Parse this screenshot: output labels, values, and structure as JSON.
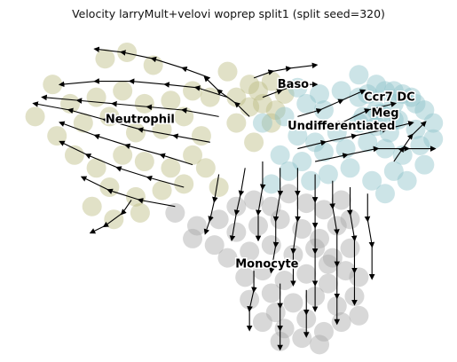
{
  "chart_data": {
    "type": "scatter",
    "title": "Velocity larryMult+velovi woprep split1 (split seed=320)",
    "grid": false,
    "axes_visible": false,
    "legend": "on data",
    "xlim": [
      0,
      100
    ],
    "ylim": [
      0,
      100
    ],
    "colors": {
      "Neutrophil": "#bcbd82",
      "Baso": "#bcbd82",
      "Undifferentiated": "#8fc4ca",
      "Ccr7 DC": "#8fc4ca",
      "Meg": "#8fc4ca",
      "Monocyte": "#a9a9a9",
      "streamline": "#000000"
    },
    "clusters": [
      {
        "name": "Neutrophil",
        "label_pos": [
          30,
          70
        ],
        "color": "#bcbd82",
        "points": [
          [
            22,
            90
          ],
          [
            27,
            92
          ],
          [
            33,
            88
          ],
          [
            10,
            82
          ],
          [
            14,
            76
          ],
          [
            20,
            78
          ],
          [
            26,
            80
          ],
          [
            31,
            76
          ],
          [
            37,
            77
          ],
          [
            42,
            80
          ],
          [
            46,
            78
          ],
          [
            6,
            72
          ],
          [
            11,
            66
          ],
          [
            17,
            70
          ],
          [
            23,
            72
          ],
          [
            29,
            67
          ],
          [
            35,
            68
          ],
          [
            40,
            72
          ],
          [
            44,
            66
          ],
          [
            15,
            60
          ],
          [
            20,
            56
          ],
          [
            26,
            60
          ],
          [
            31,
            58
          ],
          [
            37,
            56
          ],
          [
            42,
            60
          ],
          [
            23,
            50
          ],
          [
            29,
            47
          ],
          [
            35,
            49
          ],
          [
            40,
            51
          ],
          [
            45,
            56
          ],
          [
            48,
            50
          ],
          [
            19,
            44
          ],
          [
            24,
            40
          ],
          [
            30,
            42
          ],
          [
            50,
            86
          ],
          [
            55,
            82
          ],
          [
            58,
            76
          ],
          [
            60,
            70
          ],
          [
            52,
            70
          ],
          [
            56,
            64
          ]
        ]
      },
      {
        "name": "Baso",
        "label_pos": [
          65,
          81
        ],
        "color": "#bcbd82",
        "points": [
          [
            52,
            78
          ],
          [
            55,
            75
          ],
          [
            57,
            80
          ],
          [
            60,
            83
          ],
          [
            63,
            79
          ],
          [
            61,
            74
          ]
        ]
      },
      {
        "name": "Undifferentiated",
        "label_pos": [
          76,
          68
        ],
        "color": "#8fc4ca",
        "points": [
          [
            58,
            70
          ],
          [
            63,
            72
          ],
          [
            68,
            76
          ],
          [
            72,
            74
          ],
          [
            76,
            80
          ],
          [
            80,
            78
          ],
          [
            84,
            82
          ],
          [
            88,
            80
          ],
          [
            92,
            78
          ],
          [
            95,
            74
          ],
          [
            97,
            70
          ],
          [
            93,
            68
          ],
          [
            88,
            71
          ],
          [
            84,
            74
          ],
          [
            80,
            70
          ],
          [
            75,
            67
          ],
          [
            70,
            64
          ],
          [
            66,
            66
          ],
          [
            62,
            60
          ],
          [
            67,
            58
          ],
          [
            72,
            61
          ],
          [
            77,
            62
          ],
          [
            82,
            64
          ],
          [
            86,
            62
          ],
          [
            90,
            60
          ],
          [
            94,
            63
          ],
          [
            97,
            65
          ],
          [
            88,
            55
          ],
          [
            83,
            52
          ],
          [
            78,
            56
          ],
          [
            73,
            54
          ],
          [
            69,
            52
          ],
          [
            64,
            55
          ],
          [
            60,
            51
          ],
          [
            86,
            48
          ],
          [
            91,
            52
          ],
          [
            95,
            57
          ],
          [
            71,
            79
          ],
          [
            66,
            81
          ],
          [
            80,
            85
          ]
        ]
      },
      {
        "name": "Ccr7 DC",
        "label_pos": [
          87,
          77
        ],
        "color": "#8fc4ca",
        "points": [
          [
            82,
            79
          ],
          [
            86,
            80
          ],
          [
            90,
            79
          ],
          [
            93,
            76
          ],
          [
            88,
            76
          ]
        ]
      },
      {
        "name": "Meg",
        "label_pos": [
          86,
          72
        ],
        "color": "#8fc4ca",
        "points": [
          [
            81,
            72
          ],
          [
            85,
            73
          ],
          [
            89,
            71
          ],
          [
            84,
            69
          ],
          [
            87,
            67
          ]
        ]
      },
      {
        "name": "Monocyte",
        "label_pos": [
          59,
          25
        ],
        "color": "#a9a9a9",
        "points": [
          [
            38,
            42
          ],
          [
            43,
            38
          ],
          [
            48,
            40
          ],
          [
            52,
            44
          ],
          [
            56,
            46
          ],
          [
            60,
            44
          ],
          [
            64,
            48
          ],
          [
            68,
            45
          ],
          [
            72,
            43
          ],
          [
            76,
            46
          ],
          [
            42,
            34
          ],
          [
            47,
            32
          ],
          [
            52,
            36
          ],
          [
            57,
            38
          ],
          [
            62,
            40
          ],
          [
            67,
            37
          ],
          [
            71,
            34
          ],
          [
            75,
            38
          ],
          [
            78,
            40
          ],
          [
            50,
            28
          ],
          [
            55,
            30
          ],
          [
            60,
            32
          ],
          [
            65,
            29
          ],
          [
            70,
            31
          ],
          [
            74,
            28
          ],
          [
            78,
            31
          ],
          [
            54,
            22
          ],
          [
            58,
            24
          ],
          [
            63,
            21
          ],
          [
            68,
            23
          ],
          [
            73,
            20
          ],
          [
            77,
            24
          ],
          [
            80,
            22
          ],
          [
            55,
            15
          ],
          [
            60,
            17
          ],
          [
            65,
            14
          ],
          [
            70,
            16
          ],
          [
            75,
            13
          ],
          [
            79,
            16
          ],
          [
            58,
            8
          ],
          [
            63,
            6
          ],
          [
            68,
            9
          ],
          [
            72,
            5
          ],
          [
            76,
            8
          ],
          [
            80,
            10
          ],
          [
            62,
            2
          ],
          [
            67,
            3
          ],
          [
            71,
            1
          ],
          [
            61,
            11
          ],
          [
            73,
            26
          ]
        ]
      }
    ],
    "streamlines": [
      {
        "points": [
          [
            46,
            84
          ],
          [
            40,
            87
          ],
          [
            33,
            90
          ],
          [
            26,
            92
          ],
          [
            20,
            93
          ]
        ]
      },
      {
        "points": [
          [
            50,
            78
          ],
          [
            43,
            81
          ],
          [
            36,
            82
          ],
          [
            28,
            83
          ],
          [
            20,
            83
          ],
          [
            12,
            82
          ]
        ]
      },
      {
        "points": [
          [
            48,
            72
          ],
          [
            40,
            74
          ],
          [
            32,
            75
          ],
          [
            24,
            76
          ],
          [
            16,
            77
          ],
          [
            8,
            78
          ]
        ]
      },
      {
        "points": [
          [
            46,
            64
          ],
          [
            38,
            66
          ],
          [
            30,
            68
          ],
          [
            22,
            71
          ],
          [
            14,
            74
          ],
          [
            6,
            76
          ]
        ]
      },
      {
        "points": [
          [
            42,
            57
          ],
          [
            35,
            60
          ],
          [
            27,
            63
          ],
          [
            20,
            66
          ],
          [
            12,
            70
          ]
        ]
      },
      {
        "points": [
          [
            40,
            50
          ],
          [
            32,
            53
          ],
          [
            25,
            56
          ],
          [
            18,
            60
          ],
          [
            12,
            64
          ]
        ]
      },
      {
        "points": [
          [
            38,
            44
          ],
          [
            30,
            46
          ],
          [
            23,
            49
          ],
          [
            17,
            53
          ]
        ]
      },
      {
        "points": [
          [
            28,
            46
          ],
          [
            26,
            42
          ],
          [
            22,
            38
          ],
          [
            19,
            36
          ]
        ]
      },
      {
        "points": [
          [
            56,
            84
          ],
          [
            60,
            86
          ],
          [
            64,
            87
          ],
          [
            70,
            88
          ]
        ]
      },
      {
        "points": [
          [
            58,
            78
          ],
          [
            62,
            80
          ],
          [
            66,
            82
          ],
          [
            70,
            82
          ]
        ]
      },
      {
        "points": [
          [
            55,
            72
          ],
          [
            52,
            76
          ],
          [
            48,
            80
          ],
          [
            45,
            84
          ]
        ]
      },
      {
        "points": [
          [
            66,
            72
          ],
          [
            71,
            74
          ],
          [
            76,
            77
          ],
          [
            81,
            80
          ]
        ]
      },
      {
        "points": [
          [
            70,
            68
          ],
          [
            76,
            70
          ],
          [
            82,
            74
          ],
          [
            88,
            76
          ]
        ]
      },
      {
        "points": [
          [
            66,
            62
          ],
          [
            72,
            64
          ],
          [
            79,
            66
          ],
          [
            86,
            68
          ],
          [
            92,
            70
          ]
        ]
      },
      {
        "points": [
          [
            70,
            58
          ],
          [
            77,
            60
          ],
          [
            84,
            62
          ],
          [
            91,
            62
          ],
          [
            97,
            62
          ]
        ]
      },
      {
        "points": [
          [
            88,
            58
          ],
          [
            90,
            62
          ],
          [
            92,
            66
          ],
          [
            95,
            70
          ]
        ]
      },
      {
        "points": [
          [
            48,
            54
          ],
          [
            47,
            46
          ],
          [
            46,
            40
          ],
          [
            45,
            36
          ]
        ]
      },
      {
        "points": [
          [
            54,
            56
          ],
          [
            53,
            48
          ],
          [
            52,
            42
          ],
          [
            51,
            34
          ]
        ]
      },
      {
        "points": [
          [
            58,
            58
          ],
          [
            58,
            50
          ],
          [
            57,
            42
          ],
          [
            57,
            34
          ]
        ]
      },
      {
        "points": [
          [
            62,
            56
          ],
          [
            62,
            48
          ],
          [
            61,
            40
          ],
          [
            61,
            32
          ],
          [
            60,
            24
          ]
        ]
      },
      {
        "points": [
          [
            66,
            56
          ],
          [
            66,
            48
          ],
          [
            66,
            40
          ],
          [
            65,
            30
          ],
          [
            65,
            20
          ]
        ]
      },
      {
        "points": [
          [
            70,
            54
          ],
          [
            70,
            46
          ],
          [
            70,
            38
          ],
          [
            70,
            30
          ],
          [
            70,
            20
          ],
          [
            70,
            12
          ]
        ]
      },
      {
        "points": [
          [
            74,
            52
          ],
          [
            74,
            44
          ],
          [
            75,
            36
          ],
          [
            75,
            26
          ],
          [
            75,
            16
          ],
          [
            75,
            8
          ]
        ]
      },
      {
        "points": [
          [
            78,
            50
          ],
          [
            78,
            42
          ],
          [
            79,
            34
          ],
          [
            79,
            24
          ],
          [
            79,
            14
          ]
        ]
      },
      {
        "points": [
          [
            82,
            48
          ],
          [
            82,
            40
          ],
          [
            83,
            32
          ],
          [
            83,
            22
          ]
        ]
      },
      {
        "points": [
          [
            56,
            24
          ],
          [
            56,
            18
          ],
          [
            55,
            12
          ],
          [
            55,
            6
          ]
        ]
      },
      {
        "points": [
          [
            62,
            20
          ],
          [
            62,
            13
          ],
          [
            62,
            6
          ],
          [
            62,
            0
          ]
        ]
      },
      {
        "points": [
          [
            68,
            18
          ],
          [
            68,
            11
          ],
          [
            68,
            4
          ]
        ]
      }
    ]
  }
}
